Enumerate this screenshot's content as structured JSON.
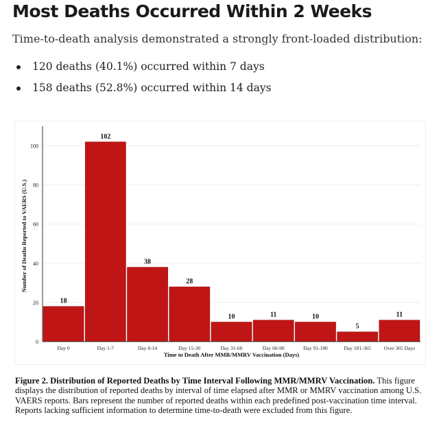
{
  "heading": "Most Deaths Occurred Within 2 Weeks",
  "intro": "Time-to-death analysis demonstrated a strongly front-loaded distribution:",
  "bullets": [
    "120 deaths (40.1%) occurred within 7 days",
    "158 deaths (52.8%) occurred within 14 days"
  ],
  "caption": {
    "title": "Figure 2. Distribution of Reported Deaths by Time Interval Following MMR/MMRV Vaccination.",
    "body": " This figure displays the distribution of reported deaths by interval of time elapsed after MMR or MMRV vaccination among U.S. VAERS reports. Bars represent the number of reported deaths within each predefined post-vaccination time interval. Reports lacking sufficient information to determine time-to-death were excluded from this figure."
  },
  "chart_data": {
    "type": "bar",
    "categories": [
      "Day 0",
      "Day 1-7",
      "Day 8-14",
      "Day 15-30",
      "Day 31-60",
      "Day 60-90",
      "Day 91-180",
      "Day 181-365",
      "Over 365 Days"
    ],
    "values": [
      18,
      102,
      38,
      28,
      10,
      11,
      10,
      5,
      11
    ],
    "xlabel": "Time to Death After MMR/MMRV Vaccination (Days)",
    "ylabel": "Number of Deaths Reported to VAERS (U.S.)",
    "yticks": [
      0,
      20,
      40,
      60,
      80,
      100
    ],
    "ylim": [
      0,
      110
    ],
    "grid": true,
    "bar_color": "#c01515",
    "data_labels": true
  }
}
